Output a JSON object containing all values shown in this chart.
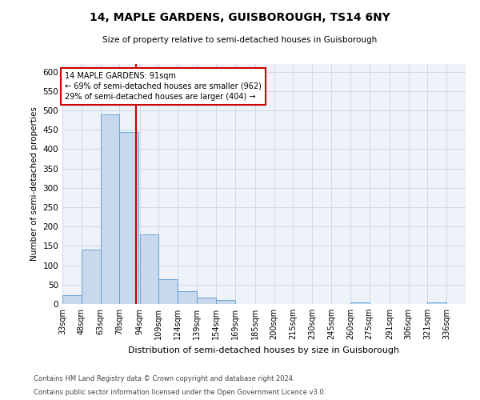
{
  "title": "14, MAPLE GARDENS, GUISBOROUGH, TS14 6NY",
  "subtitle": "Size of property relative to semi-detached houses in Guisborough",
  "xlabel": "Distribution of semi-detached houses by size in Guisborough",
  "ylabel": "Number of semi-detached properties",
  "footnote1": "Contains HM Land Registry data © Crown copyright and database right 2024.",
  "footnote2": "Contains public sector information licensed under the Open Government Licence v3.0.",
  "property_label": "14 MAPLE GARDENS: 91sqm",
  "pct_smaller": 69,
  "pct_larger": 29,
  "n_smaller": 962,
  "n_larger": 404,
  "bin_labels": [
    "33sqm",
    "48sqm",
    "63sqm",
    "78sqm",
    "94sqm",
    "109sqm",
    "124sqm",
    "139sqm",
    "154sqm",
    "169sqm",
    "185sqm",
    "200sqm",
    "215sqm",
    "230sqm",
    "245sqm",
    "260sqm",
    "275sqm",
    "291sqm",
    "306sqm",
    "321sqm",
    "336sqm"
  ],
  "bin_edges": [
    33,
    48,
    63,
    78,
    94,
    109,
    124,
    139,
    154,
    169,
    185,
    200,
    215,
    230,
    245,
    260,
    275,
    291,
    306,
    321,
    336
  ],
  "bar_heights": [
    23,
    140,
    490,
    445,
    180,
    65,
    33,
    16,
    10,
    0,
    0,
    0,
    0,
    0,
    0,
    5,
    0,
    0,
    0,
    5,
    0
  ],
  "bar_color": "#c8d9ed",
  "bar_edge_color": "#5b9bd5",
  "vline_color": "#cc0000",
  "vline_x": 91,
  "annotation_box_color": "#cc0000",
  "ylim": [
    0,
    620
  ],
  "yticks": [
    0,
    50,
    100,
    150,
    200,
    250,
    300,
    350,
    400,
    450,
    500,
    550,
    600
  ],
  "grid_color": "#d0d8e8",
  "bg_color": "#eef2f9"
}
